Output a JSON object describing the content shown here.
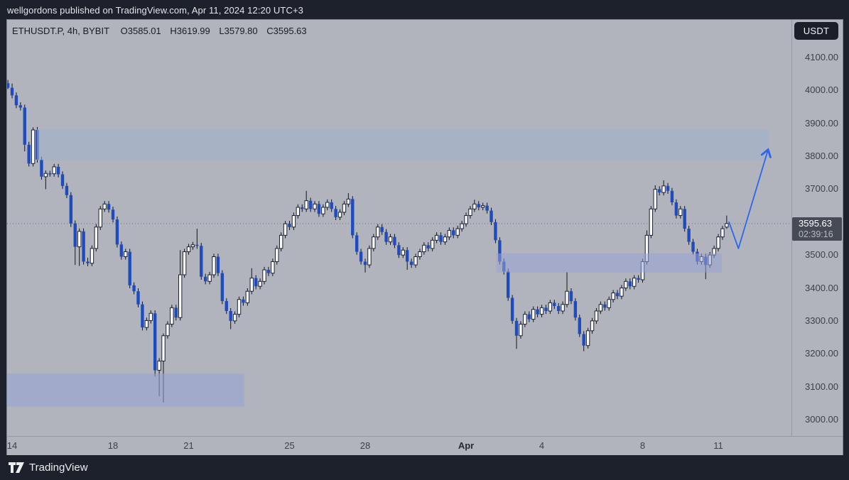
{
  "top_bar": {
    "text": "wellgordons published on TradingView.com, Apr 11, 2024 12:20 UTC+3"
  },
  "header": {
    "symbol_line": "ETHUSDT.P, 4h, BYBIT",
    "ohlc": {
      "o": "O3585.01",
      "h": "H3619.99",
      "l": "L3579.80",
      "c": "C3595.63"
    }
  },
  "price_axis": {
    "currency": "USDT",
    "labels": [
      {
        "label": "4100.00",
        "value": 4100
      },
      {
        "label": "4000.00",
        "value": 4000
      },
      {
        "label": "3900.00",
        "value": 3900
      },
      {
        "label": "3800.00",
        "value": 3800
      },
      {
        "label": "3700.00",
        "value": 3700
      },
      {
        "label": "3500.00",
        "value": 3500
      },
      {
        "label": "3400.00",
        "value": 3400
      },
      {
        "label": "3300.00",
        "value": 3300
      },
      {
        "label": "3200.00",
        "value": 3200
      },
      {
        "label": "3100.00",
        "value": 3100
      },
      {
        "label": "3000.00",
        "value": 3000
      }
    ],
    "price_box": {
      "price": "3595.63",
      "countdown": "02:39:16",
      "value": 3595.63
    }
  },
  "time_axis": {
    "ticks": [
      {
        "label": "14",
        "index": 1,
        "bold": false
      },
      {
        "label": "18",
        "index": 25,
        "bold": false
      },
      {
        "label": "21",
        "index": 43,
        "bold": false
      },
      {
        "label": "25",
        "index": 67,
        "bold": false
      },
      {
        "label": "28",
        "index": 85,
        "bold": false
      },
      {
        "label": "Apr",
        "index": 109,
        "bold": true
      },
      {
        "label": "4",
        "index": 127,
        "bold": false
      },
      {
        "label": "8",
        "index": 151,
        "bold": false
      },
      {
        "label": "11",
        "index": 169,
        "bold": false
      }
    ]
  },
  "footer": {
    "brand": "TradingView"
  },
  "chart_data": {
    "type": "candlestick",
    "symbol": "ETHUSDT.P",
    "interval": "4h",
    "exchange": "BYBIT",
    "last_ohlc": {
      "open": 3585.01,
      "high": 3619.99,
      "low": 3579.8,
      "close": 3595.63
    },
    "y_axis": {
      "min": 3000,
      "max": 4100,
      "tick_step": 100,
      "grid": false
    },
    "x_axis": {
      "start": "Mar 14",
      "end": "Apr 11",
      "candles_per_day": 6
    },
    "legend_position": "none",
    "price_line": {
      "value": 3595.63,
      "color": "#71757f"
    },
    "colors": {
      "up": "#ffffff",
      "up_border": "#1a2233",
      "down": "#1e4cc0",
      "wick": "#11151f"
    },
    "zones": [
      {
        "name": "supply-zone-upper",
        "price_top": 3882,
        "price_bottom": 3788,
        "from_index": 6.9,
        "to_index": 180.9,
        "fill": "rgba(161,176,204,0.55)"
      },
      {
        "name": "resistance-zone-mid",
        "price_top": 3505,
        "price_bottom": 3447,
        "from_index": 116.2,
        "to_index": 169.8,
        "fill": "rgba(152,163,214,0.55)"
      },
      {
        "name": "demand-zone-lower",
        "price_top": 3140,
        "price_bottom": 3040,
        "from_index": -2,
        "to_index": 56.2,
        "fill": "rgba(152,163,214,0.6)"
      }
    ],
    "arrow": {
      "color": "#2d66ee",
      "points": [
        [
          171.5,
          3602
        ],
        [
          173.8,
          3520
        ],
        [
          180.8,
          3818
        ]
      ]
    },
    "candles": [
      [
        4022,
        4032,
        4004,
        4008
      ],
      [
        4008,
        4021,
        3976,
        3985
      ],
      [
        3985,
        3994,
        3946,
        3955
      ],
      [
        3955,
        3964,
        3939,
        3948
      ],
      [
        3948,
        3957,
        3815,
        3835
      ],
      [
        3835,
        3844,
        3769,
        3778
      ],
      [
        3778,
        3888,
        3769,
        3880
      ],
      [
        3880,
        3889,
        3781,
        3790
      ],
      [
        3790,
        3799,
        3729,
        3738
      ],
      [
        3738,
        3757,
        3700,
        3748
      ],
      [
        3748,
        3756,
        3738,
        3747
      ],
      [
        3747,
        3777,
        3738,
        3768
      ],
      [
        3768,
        3777,
        3736,
        3745
      ],
      [
        3745,
        3754,
        3701,
        3710
      ],
      [
        3710,
        3719,
        3673,
        3682
      ],
      [
        3682,
        3691,
        3585,
        3596
      ],
      [
        3596,
        3605,
        3470,
        3525
      ],
      [
        3525,
        3581,
        3467,
        3572
      ],
      [
        3572,
        3581,
        3471,
        3480
      ],
      [
        3480,
        3492,
        3466,
        3475
      ],
      [
        3475,
        3529,
        3466,
        3520
      ],
      [
        3520,
        3594,
        3511,
        3585
      ],
      [
        3585,
        3649,
        3576,
        3640
      ],
      [
        3640,
        3664,
        3631,
        3655
      ],
      [
        3655,
        3664,
        3629,
        3638
      ],
      [
        3638,
        3647,
        3599,
        3608
      ],
      [
        3608,
        3617,
        3523,
        3532
      ],
      [
        3532,
        3541,
        3486,
        3495
      ],
      [
        3495,
        3519,
        3486,
        3510
      ],
      [
        3510,
        3519,
        3399,
        3408
      ],
      [
        3408,
        3417,
        3381,
        3390
      ],
      [
        3390,
        3399,
        3341,
        3350
      ],
      [
        3350,
        3359,
        3271,
        3280
      ],
      [
        3280,
        3310,
        3271,
        3301
      ],
      [
        3301,
        3332,
        3292,
        3323
      ],
      [
        3323,
        3332,
        3131,
        3150
      ],
      [
        3150,
        3187,
        3071,
        3178
      ],
      [
        3178,
        3262,
        3052,
        3255
      ],
      [
        3255,
        3299,
        3246,
        3290
      ],
      [
        3290,
        3349,
        3281,
        3340
      ],
      [
        3340,
        3349,
        3301,
        3310
      ],
      [
        3310,
        3515,
        3301,
        3440
      ],
      [
        3440,
        3519,
        3431,
        3510
      ],
      [
        3510,
        3534,
        3501,
        3525
      ],
      [
        3525,
        3540,
        3516,
        3531
      ],
      [
        3531,
        3580,
        3519,
        3528
      ],
      [
        3528,
        3537,
        3425,
        3434
      ],
      [
        3434,
        3443,
        3411,
        3420
      ],
      [
        3420,
        3449,
        3411,
        3440
      ],
      [
        3440,
        3504,
        3431,
        3495
      ],
      [
        3495,
        3504,
        3436,
        3445
      ],
      [
        3445,
        3454,
        3351,
        3360
      ],
      [
        3360,
        3369,
        3321,
        3330
      ],
      [
        3330,
        3339,
        3275,
        3300
      ],
      [
        3300,
        3329,
        3291,
        3320
      ],
      [
        3320,
        3374,
        3311,
        3365
      ],
      [
        3365,
        3374,
        3346,
        3355
      ],
      [
        3355,
        3399,
        3346,
        3390
      ],
      [
        3390,
        3460,
        3381,
        3430
      ],
      [
        3430,
        3439,
        3396,
        3405
      ],
      [
        3405,
        3429,
        3396,
        3420
      ],
      [
        3420,
        3464,
        3411,
        3455
      ],
      [
        3455,
        3464,
        3436,
        3445
      ],
      [
        3445,
        3489,
        3436,
        3480
      ],
      [
        3480,
        3529,
        3471,
        3520
      ],
      [
        3520,
        3569,
        3511,
        3560
      ],
      [
        3560,
        3604,
        3551,
        3595
      ],
      [
        3595,
        3604,
        3576,
        3585
      ],
      [
        3585,
        3629,
        3576,
        3620
      ],
      [
        3620,
        3654,
        3611,
        3645
      ],
      [
        3645,
        3654,
        3631,
        3640
      ],
      [
        3640,
        3695,
        3631,
        3665
      ],
      [
        3665,
        3674,
        3631,
        3640
      ],
      [
        3640,
        3664,
        3631,
        3655
      ],
      [
        3655,
        3664,
        3616,
        3625
      ],
      [
        3625,
        3654,
        3616,
        3645
      ],
      [
        3645,
        3669,
        3636,
        3660
      ],
      [
        3660,
        3669,
        3631,
        3640
      ],
      [
        3640,
        3649,
        3606,
        3615
      ],
      [
        3615,
        3639,
        3606,
        3630
      ],
      [
        3630,
        3664,
        3621,
        3655
      ],
      [
        3655,
        3688,
        3646,
        3670
      ],
      [
        3670,
        3679,
        3551,
        3560
      ],
      [
        3560,
        3569,
        3501,
        3510
      ],
      [
        3510,
        3519,
        3471,
        3480
      ],
      [
        3480,
        3489,
        3447,
        3470
      ],
      [
        3470,
        3529,
        3461,
        3520
      ],
      [
        3520,
        3564,
        3511,
        3555
      ],
      [
        3555,
        3594,
        3546,
        3585
      ],
      [
        3585,
        3594,
        3561,
        3570
      ],
      [
        3570,
        3579,
        3531,
        3540
      ],
      [
        3540,
        3564,
        3531,
        3555
      ],
      [
        3555,
        3564,
        3521,
        3530
      ],
      [
        3530,
        3539,
        3491,
        3500
      ],
      [
        3500,
        3524,
        3491,
        3515
      ],
      [
        3515,
        3524,
        3455,
        3480
      ],
      [
        3480,
        3489,
        3461,
        3470
      ],
      [
        3470,
        3504,
        3461,
        3495
      ],
      [
        3495,
        3519,
        3486,
        3510
      ],
      [
        3510,
        3539,
        3501,
        3530
      ],
      [
        3530,
        3539,
        3511,
        3520
      ],
      [
        3520,
        3554,
        3511,
        3545
      ],
      [
        3545,
        3569,
        3536,
        3560
      ],
      [
        3560,
        3569,
        3531,
        3540
      ],
      [
        3540,
        3564,
        3531,
        3555
      ],
      [
        3555,
        3584,
        3546,
        3575
      ],
      [
        3575,
        3584,
        3551,
        3560
      ],
      [
        3560,
        3589,
        3551,
        3580
      ],
      [
        3580,
        3604,
        3571,
        3595
      ],
      [
        3595,
        3629,
        3586,
        3620
      ],
      [
        3620,
        3649,
        3611,
        3640
      ],
      [
        3640,
        3668,
        3631,
        3655
      ],
      [
        3655,
        3664,
        3636,
        3645
      ],
      [
        3645,
        3659,
        3636,
        3650
      ],
      [
        3650,
        3659,
        3626,
        3635
      ],
      [
        3635,
        3644,
        3591,
        3600
      ],
      [
        3600,
        3609,
        3536,
        3545
      ],
      [
        3545,
        3554,
        3471,
        3480
      ],
      [
        3480,
        3489,
        3441,
        3450
      ],
      [
        3450,
        3459,
        3361,
        3370
      ],
      [
        3370,
        3379,
        3291,
        3300
      ],
      [
        3300,
        3309,
        3215,
        3255
      ],
      [
        3255,
        3299,
        3246,
        3290
      ],
      [
        3290,
        3329,
        3281,
        3320
      ],
      [
        3320,
        3329,
        3296,
        3305
      ],
      [
        3305,
        3344,
        3296,
        3335
      ],
      [
        3335,
        3344,
        3311,
        3320
      ],
      [
        3320,
        3349,
        3311,
        3340
      ],
      [
        3340,
        3349,
        3321,
        3330
      ],
      [
        3330,
        3364,
        3321,
        3355
      ],
      [
        3355,
        3364,
        3336,
        3345
      ],
      [
        3345,
        3354,
        3321,
        3330
      ],
      [
        3330,
        3359,
        3321,
        3350
      ],
      [
        3350,
        3448,
        3341,
        3390
      ],
      [
        3390,
        3399,
        3351,
        3360
      ],
      [
        3360,
        3369,
        3301,
        3310
      ],
      [
        3310,
        3319,
        3251,
        3260
      ],
      [
        3260,
        3269,
        3208,
        3225
      ],
      [
        3225,
        3279,
        3216,
        3270
      ],
      [
        3270,
        3309,
        3261,
        3300
      ],
      [
        3300,
        3339,
        3291,
        3330
      ],
      [
        3330,
        3359,
        3321,
        3350
      ],
      [
        3350,
        3359,
        3331,
        3340
      ],
      [
        3340,
        3374,
        3331,
        3365
      ],
      [
        3365,
        3394,
        3356,
        3385
      ],
      [
        3385,
        3394,
        3366,
        3375
      ],
      [
        3375,
        3409,
        3366,
        3400
      ],
      [
        3400,
        3429,
        3391,
        3420
      ],
      [
        3420,
        3429,
        3396,
        3405
      ],
      [
        3405,
        3439,
        3396,
        3430
      ],
      [
        3430,
        3439,
        3416,
        3425
      ],
      [
        3425,
        3489,
        3416,
        3480
      ],
      [
        3480,
        3575,
        3471,
        3560
      ],
      [
        3560,
        3649,
        3551,
        3640
      ],
      [
        3640,
        3712,
        3631,
        3700
      ],
      [
        3700,
        3709,
        3681,
        3690
      ],
      [
        3690,
        3727,
        3681,
        3710
      ],
      [
        3710,
        3719,
        3686,
        3695
      ],
      [
        3695,
        3704,
        3651,
        3660
      ],
      [
        3660,
        3669,
        3611,
        3620
      ],
      [
        3620,
        3649,
        3611,
        3640
      ],
      [
        3640,
        3649,
        3571,
        3580
      ],
      [
        3580,
        3589,
        3531,
        3540
      ],
      [
        3540,
        3549,
        3501,
        3510
      ],
      [
        3510,
        3519,
        3471,
        3480
      ],
      [
        3480,
        3504,
        3471,
        3495
      ],
      [
        3495,
        3504,
        3427,
        3470
      ],
      [
        3470,
        3509,
        3461,
        3500
      ],
      [
        3500,
        3529,
        3491,
        3520
      ],
      [
        3520,
        3564,
        3511,
        3555
      ],
      [
        3555,
        3589,
        3546,
        3580
      ],
      [
        3585.01,
        3619.99,
        3579.8,
        3595.63
      ]
    ]
  }
}
